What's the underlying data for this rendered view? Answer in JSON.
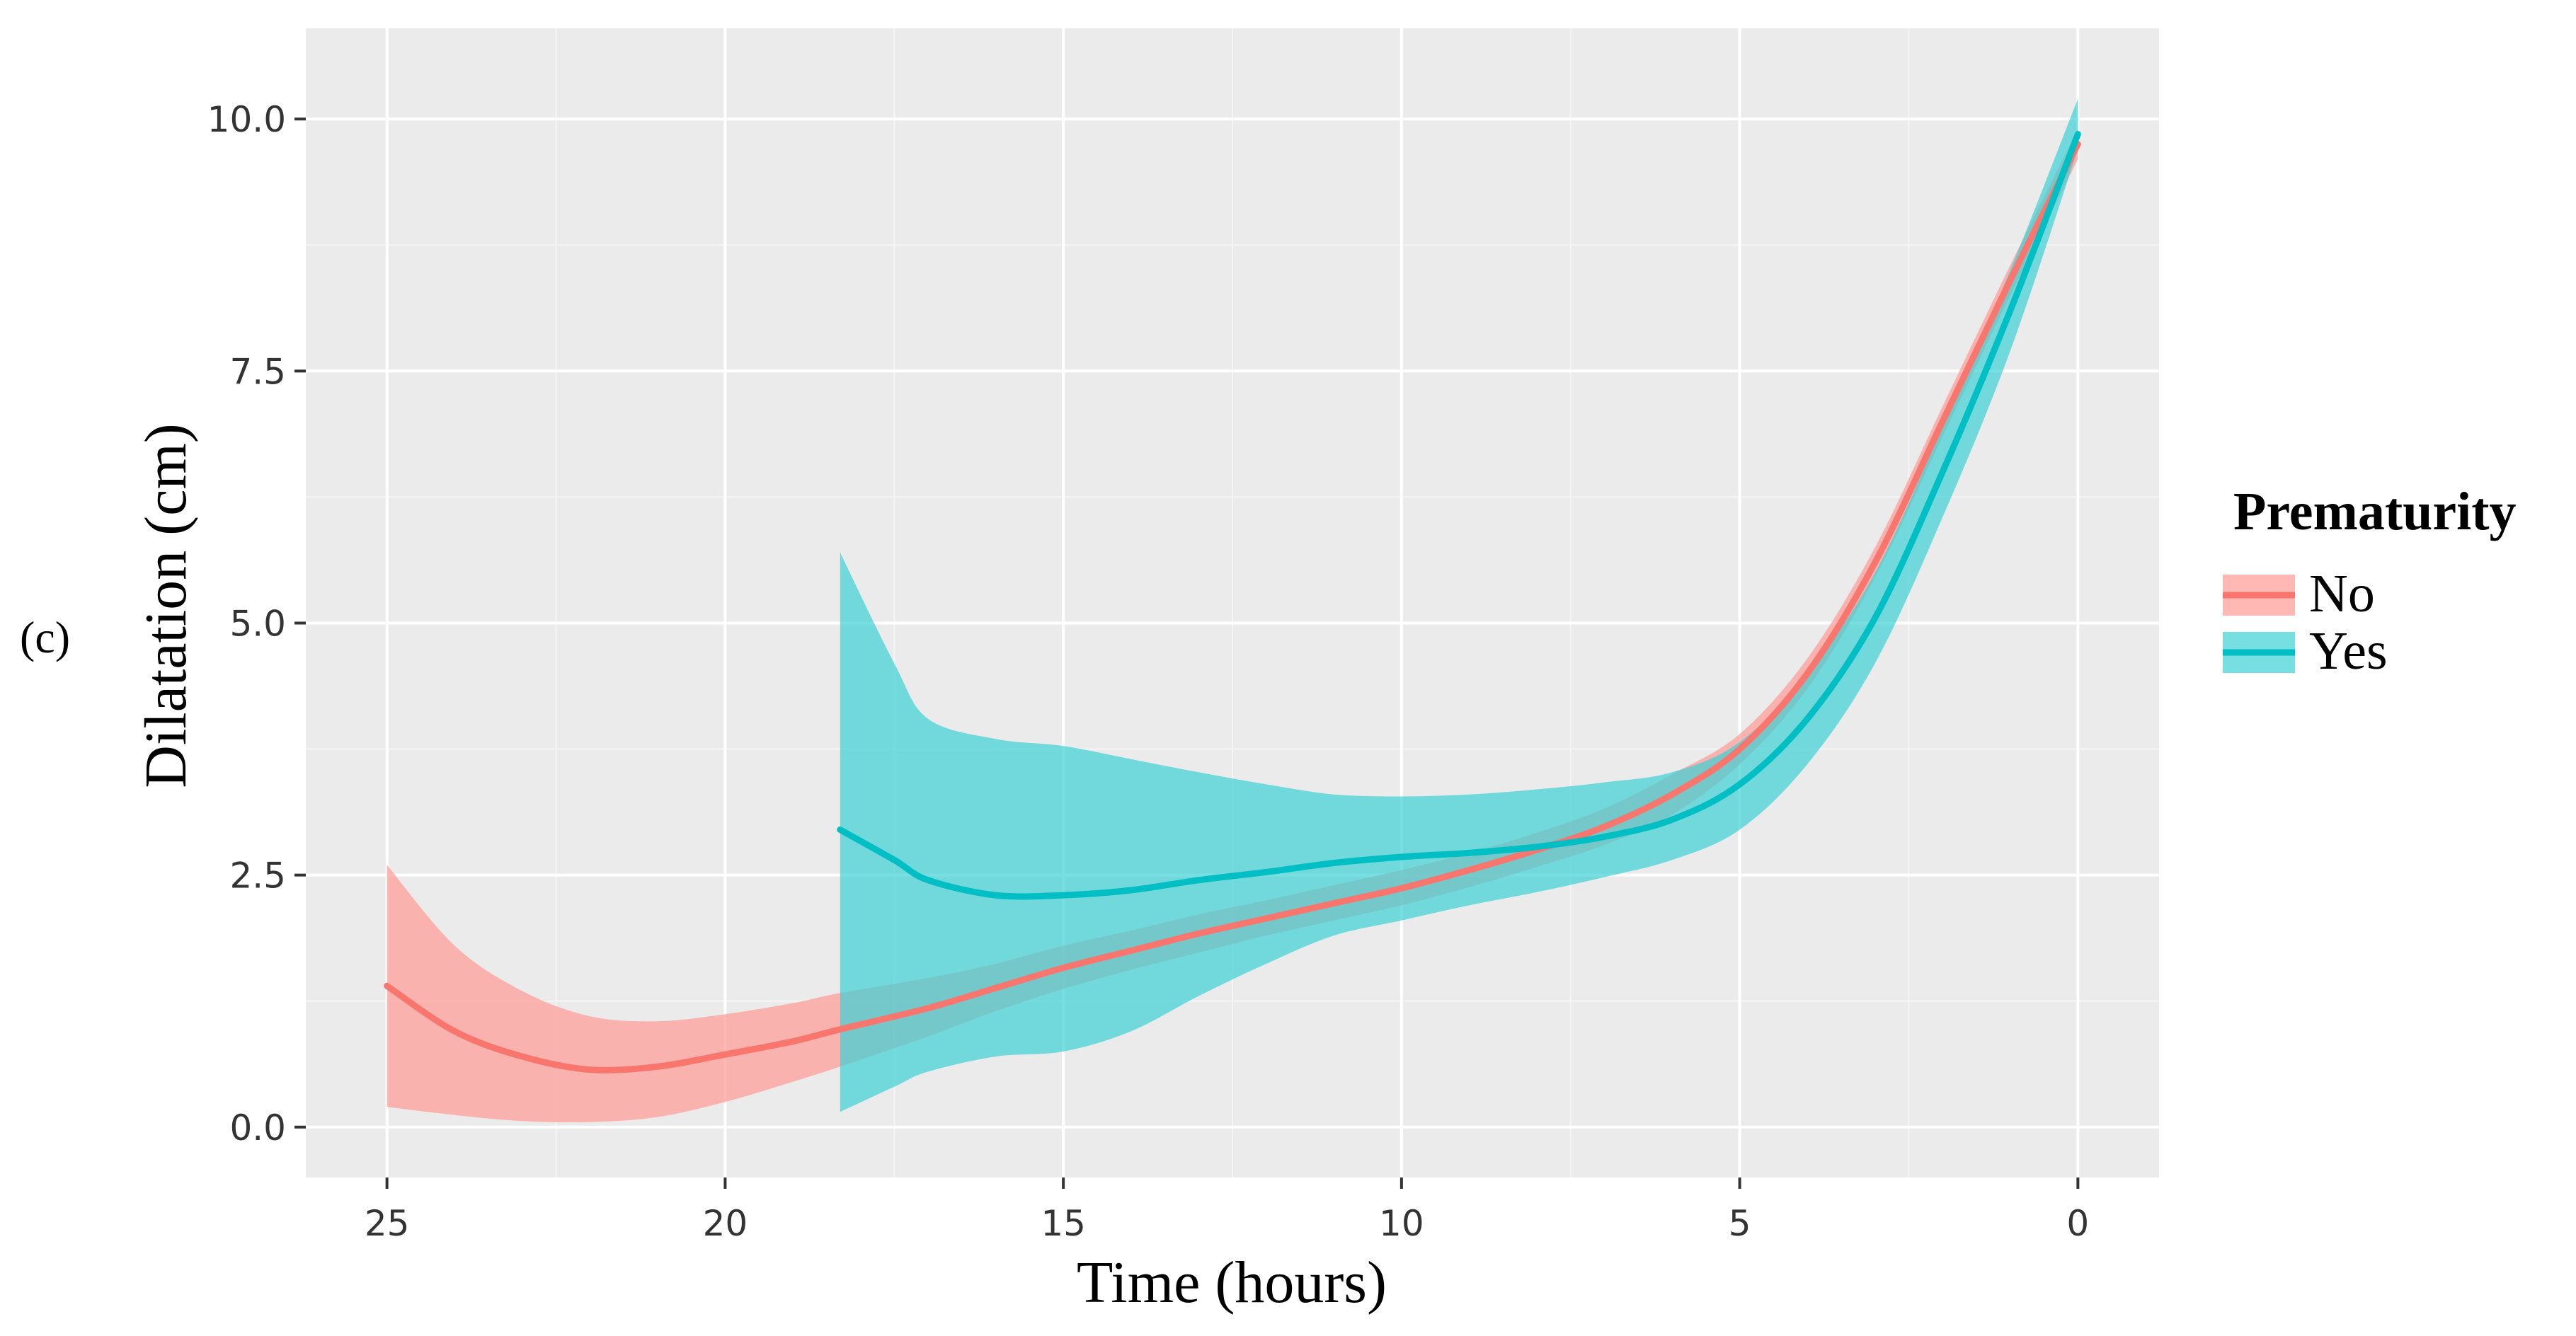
{
  "panel_label": "(c)",
  "chart_data": {
    "type": "line",
    "title": "",
    "xlabel": "Time (hours)",
    "ylabel": "Dilatation (cm)",
    "x_reversed": true,
    "xlim": [
      26.2,
      -1.2
    ],
    "ylim": [
      -0.5,
      10.9
    ],
    "x_ticks": [
      25,
      20,
      15,
      10,
      5,
      0
    ],
    "x_tick_labels": [
      "25",
      "20",
      "15",
      "10",
      "5",
      "0"
    ],
    "y_ticks": [
      0,
      2.5,
      5,
      7.5,
      10
    ],
    "y_tick_labels": [
      "0.0",
      "2.5",
      "5.0",
      "7.5",
      "10.0"
    ],
    "grid": true,
    "legend": {
      "title": "Prematurity",
      "position": "right"
    },
    "series": [
      {
        "name": "No",
        "color": "#F8766D",
        "band_color": "#FF9A94",
        "x": [
          25,
          24,
          23,
          22,
          21,
          20,
          19,
          18.3,
          17,
          16,
          15,
          14,
          13,
          12,
          11,
          10,
          9,
          8,
          7,
          6,
          5,
          4,
          3,
          2,
          1,
          0
        ],
        "y": [
          1.4,
          0.95,
          0.7,
          0.57,
          0.6,
          0.72,
          0.85,
          0.97,
          1.18,
          1.38,
          1.58,
          1.75,
          1.92,
          2.07,
          2.22,
          2.37,
          2.55,
          2.75,
          2.98,
          3.3,
          3.75,
          4.5,
          5.6,
          7.0,
          8.4,
          9.75
        ],
        "lower": [
          0.2,
          0.12,
          0.06,
          0.05,
          0.1,
          0.25,
          0.45,
          0.6,
          0.9,
          1.15,
          1.37,
          1.56,
          1.73,
          1.9,
          2.05,
          2.2,
          2.38,
          2.58,
          2.8,
          3.1,
          3.6,
          4.35,
          5.45,
          6.85,
          8.25,
          9.6
        ],
        "upper": [
          2.6,
          1.8,
          1.35,
          1.1,
          1.05,
          1.12,
          1.23,
          1.33,
          1.48,
          1.62,
          1.8,
          1.95,
          2.11,
          2.25,
          2.4,
          2.55,
          2.72,
          2.92,
          3.16,
          3.5,
          3.9,
          4.65,
          5.75,
          7.15,
          8.55,
          9.9
        ]
      },
      {
        "name": "Yes",
        "color": "#00BFC4",
        "band_color": "#3DD1D4",
        "x": [
          18.3,
          17.5,
          17,
          16,
          15,
          14,
          13,
          12,
          11,
          10,
          9,
          8,
          7,
          6,
          5,
          4,
          3,
          2,
          1,
          0
        ],
        "y": [
          2.95,
          2.65,
          2.45,
          2.3,
          2.3,
          2.35,
          2.45,
          2.53,
          2.62,
          2.68,
          2.72,
          2.78,
          2.88,
          3.05,
          3.4,
          4.05,
          5.05,
          6.5,
          8.1,
          9.85
        ],
        "lower": [
          0.15,
          0.4,
          0.55,
          0.7,
          0.75,
          0.95,
          1.3,
          1.62,
          1.9,
          2.05,
          2.2,
          2.33,
          2.48,
          2.65,
          2.95,
          3.6,
          4.6,
          6.05,
          7.7,
          9.7
        ],
        "upper": [
          5.7,
          4.6,
          4.05,
          3.85,
          3.78,
          3.65,
          3.52,
          3.4,
          3.3,
          3.28,
          3.3,
          3.35,
          3.42,
          3.52,
          3.82,
          4.5,
          5.5,
          6.95,
          8.5,
          10.2
        ]
      }
    ]
  }
}
